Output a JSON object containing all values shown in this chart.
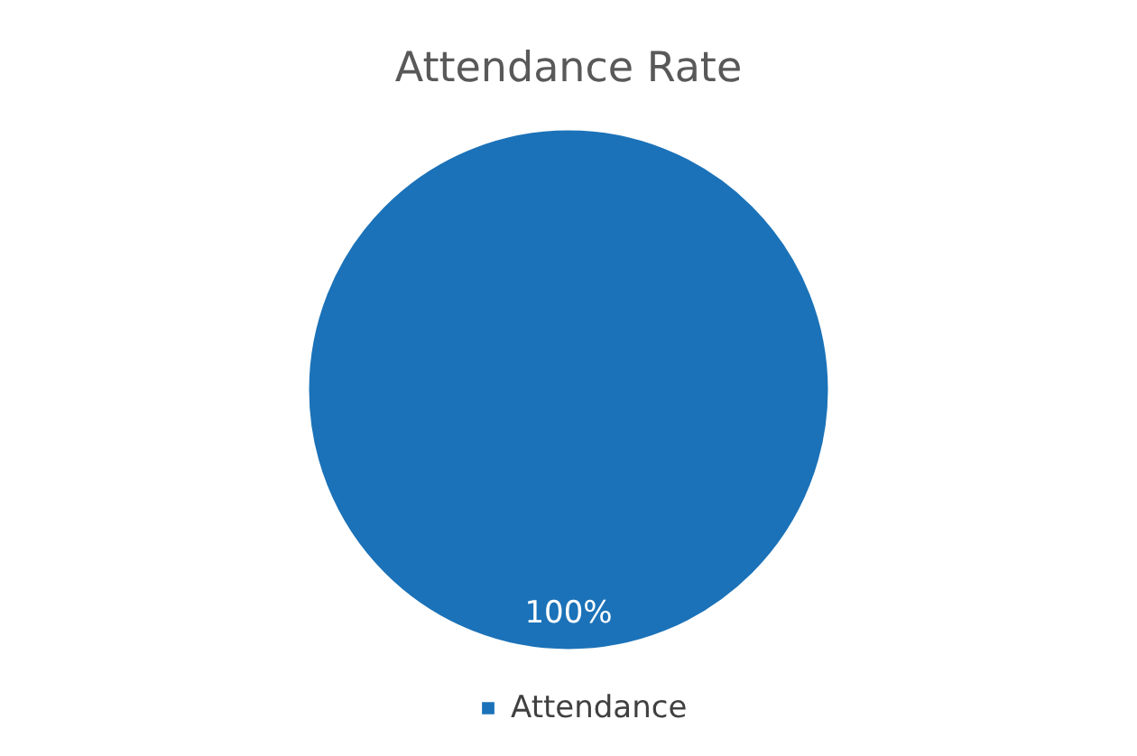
{
  "chart_data": {
    "type": "pie",
    "title": "Attendance Rate",
    "categories": [
      "Attendance"
    ],
    "values": [
      100
    ],
    "colors": [
      "#1b72b8"
    ],
    "value_labels": [
      "100%"
    ],
    "legend": "bottom"
  }
}
